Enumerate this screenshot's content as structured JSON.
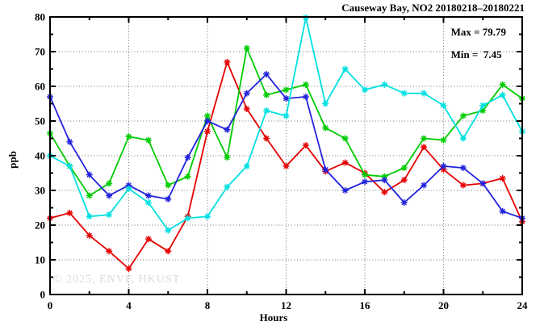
{
  "chart_data": {
    "type": "line",
    "title": "Causeway Bay, NO2 20180218–20180221",
    "xlabel": "Hours",
    "ylabel": "ppb",
    "watermark": "© 2025, ENVF, HKUST",
    "xlim": [
      0,
      24
    ],
    "ylim": [
      0,
      80
    ],
    "xticks": [
      0,
      4,
      8,
      12,
      16,
      20,
      24
    ],
    "xtick_minor_step": 2,
    "yticks": [
      0,
      10,
      20,
      30,
      40,
      50,
      60,
      70,
      80
    ],
    "ytick_minor_step": 5,
    "grid": "dotted-at-major-ticks",
    "legend": "none",
    "annotations": {
      "max": 79.79,
      "min": 7.45,
      "max_label": "Max = 79.79",
      "min_label": "Min =  7.45"
    },
    "x": [
      0,
      1,
      2,
      3,
      4,
      5,
      6,
      7,
      8,
      9,
      10,
      11,
      12,
      13,
      14,
      15,
      16,
      17,
      18,
      19,
      20,
      21,
      22,
      23,
      24
    ],
    "series": [
      {
        "name": "series-red",
        "color": "#e60000",
        "marker": "asterisk",
        "values": [
          22,
          23.5,
          17,
          12.5,
          7.45,
          16,
          12.5,
          22.5,
          47,
          67,
          53.5,
          45,
          37,
          43,
          35.5,
          38,
          35,
          29.5,
          33,
          42.5,
          36,
          31.5,
          32,
          33.5,
          21
        ]
      },
      {
        "name": "series-green",
        "color": "#00cc00",
        "marker": "asterisk",
        "values": [
          46.5,
          37,
          28.5,
          32,
          45.5,
          44.5,
          31.5,
          34,
          51.5,
          39.5,
          71,
          57.5,
          59,
          60.5,
          48,
          45,
          34.5,
          34,
          36.5,
          45,
          44.5,
          51.5,
          53,
          60.5,
          56.5
        ]
      },
      {
        "name": "series-blue",
        "color": "#2222dd",
        "marker": "asterisk",
        "values": [
          57,
          44,
          34.5,
          28.5,
          31.5,
          28.5,
          27.5,
          39.5,
          50,
          47.5,
          58,
          63.5,
          56.5,
          57,
          36,
          30,
          32.5,
          33,
          26.5,
          31.5,
          37,
          36.5,
          32,
          24,
          22
        ]
      },
      {
        "name": "series-cyan",
        "color": "#00e0e0",
        "marker": "asterisk",
        "values": [
          40,
          37,
          22.5,
          23,
          30.5,
          26.5,
          18.5,
          22,
          22.5,
          31,
          37,
          53,
          51.5,
          79.79,
          55,
          65,
          59,
          60.5,
          58,
          58,
          54.5,
          45,
          54.5,
          57.5,
          47
        ]
      }
    ]
  }
}
